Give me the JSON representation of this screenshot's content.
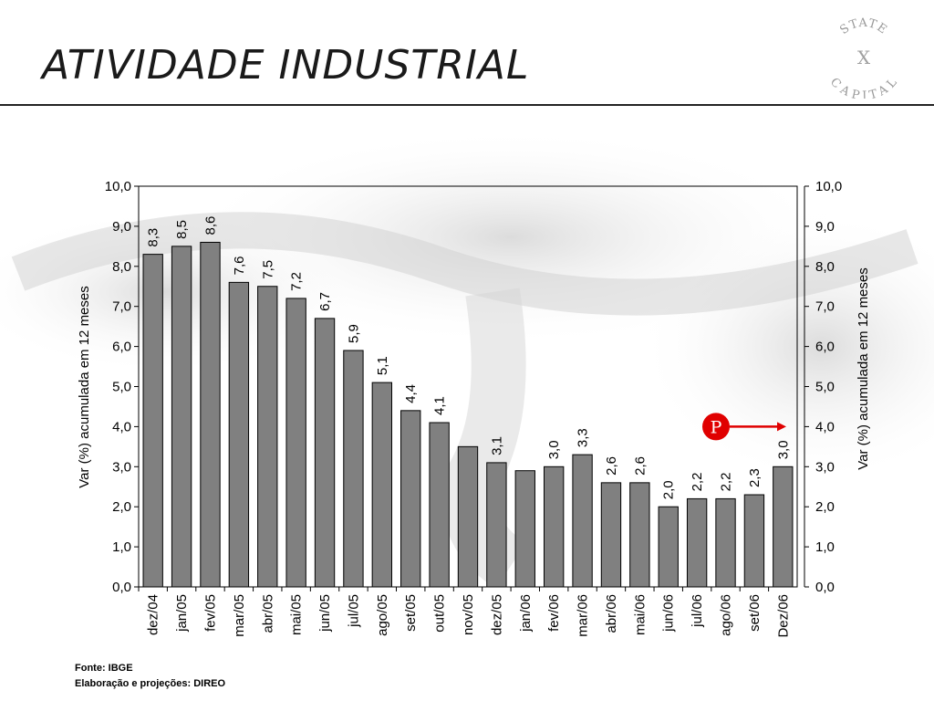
{
  "page": {
    "title": "ATIVIDADE INDUSTRIAL",
    "logo_text_top": "STATE",
    "logo_text_bottom": "CAPITAL",
    "logo_symbol": "X",
    "source_note": "Fonte: IBGE",
    "elaboration_note": "Elaboração e projeções: DIREO"
  },
  "chart_data": {
    "type": "bar",
    "categories": [
      "dez/04",
      "jan/05",
      "fev/05",
      "mar/05",
      "abr/05",
      "mai/05",
      "jun/05",
      "jul/05",
      "ago/05",
      "set/05",
      "out/05",
      "nov/05",
      "dez/05",
      "jan/06",
      "fev/06",
      "mar/06",
      "abr/06",
      "mai/06",
      "jun/06",
      "jul/06",
      "ago/06",
      "set/06",
      "Dez/06"
    ],
    "values": [
      8.3,
      8.5,
      8.6,
      7.6,
      7.5,
      7.2,
      6.7,
      5.9,
      5.1,
      4.4,
      4.1,
      3.5,
      3.1,
      2.9,
      3.0,
      3.3,
      2.6,
      2.6,
      2.0,
      2.2,
      2.2,
      2.3,
      3.0
    ],
    "data_labels": [
      "8,3",
      "8,5",
      "8,6",
      "7,6",
      "7,5",
      "7,2",
      "6,7",
      "5,9",
      "5,1",
      "4,4",
      "4,1",
      "",
      "3,1",
      "",
      "3,0",
      "3,3",
      "2,6",
      "2,6",
      "2,0",
      "2,2",
      "2,2",
      "2,3",
      "3,0"
    ],
    "ylabel": "Var (%) acumulada em 12 meses",
    "y2label": "Var (%) acumulada em 12 meses",
    "ylim": [
      0,
      10
    ],
    "yticks": [
      "0,0",
      "1,0",
      "2,0",
      "3,0",
      "4,0",
      "5,0",
      "6,0",
      "7,0",
      "8,0",
      "9,0",
      "10,0"
    ],
    "grid": false,
    "bar_color": "#808080",
    "projection_marker": {
      "label": "P",
      "color": "#e00000",
      "points_to": "Dez/06"
    }
  }
}
